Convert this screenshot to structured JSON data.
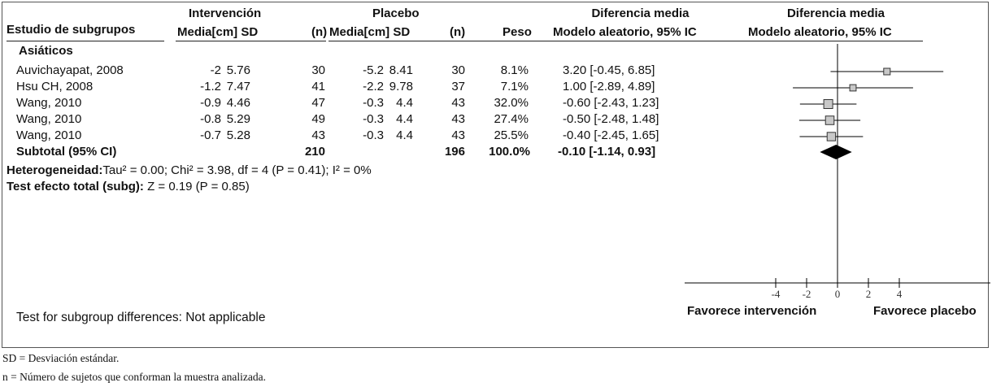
{
  "headers": {
    "study": "Estudio de subgrupos",
    "intervention": "Intervención",
    "placebo": "Placebo",
    "mean_sd_left": "Media[cm] SD",
    "n_left": "(n)",
    "mean_sd_right": "Media[cm] SD",
    "n_right": "(n)",
    "weight": "Peso",
    "diff_title": "Diferencia media",
    "diff_sub": "Modelo aleatorio, 95% IC",
    "plot_title": "Diferencia media",
    "plot_sub": "Modelo aleatorio, 95% IC"
  },
  "group_label": "Asiáticos",
  "studies": [
    {
      "name": "Auvichayapat, 2008",
      "m1": "-2",
      "sd1": "5.76",
      "n1": "30",
      "m2": "-5.2",
      "sd2": "8.41",
      "n2": "30",
      "weight": "8.1%",
      "ci": "3.20 [-0.45, 6.85]"
    },
    {
      "name": "Hsu CH, 2008",
      "m1": "-1.2",
      "sd1": "7.47",
      "n1": "41",
      "m2": "-2.2",
      "sd2": "9.78",
      "n2": "37",
      "weight": "7.1%",
      "ci": "1.00 [-2.89, 4.89]"
    },
    {
      "name": "Wang, 2010",
      "m1": "-0.9",
      "sd1": "4.46",
      "n1": "47",
      "m2": "-0.3",
      "sd2": "4.4",
      "n2": "43",
      "weight": "32.0%",
      "ci": "-0.60 [-2.43, 1.23]"
    },
    {
      "name": "Wang, 2010",
      "m1": "-0.8",
      "sd1": "5.29",
      "n1": "49",
      "m2": "-0.3",
      "sd2": "4.4",
      "n2": "43",
      "weight": "27.4%",
      "ci": "-0.50 [-2.48, 1.48]"
    },
    {
      "name": "Wang, 2010",
      "m1": "-0.7",
      "sd1": "5.28",
      "n1": "43",
      "m2": "-0.3",
      "sd2": "4.4",
      "n2": "43",
      "weight": "25.5%",
      "ci": "-0.40 [-2.45, 1.65]"
    }
  ],
  "subtotal": {
    "label": "Subtotal (95% CI)",
    "n1": "210",
    "n2": "196",
    "weight": "100.0%",
    "ci": "-0.10 [-1.14, 0.93]"
  },
  "heterogeneity": {
    "label": "Heterogeneidad:",
    "text": "Tau² = 0.00; Chi² = 3.98, df = 4 (P = 0.41); I² = 0%"
  },
  "overall": {
    "label": "Test efecto total (subg):",
    "text": "Z = 0.19 (P = 0.85)"
  },
  "subgroup_diff": "Test for subgroup differences: Not applicable",
  "favours_left": "Favorece intervención",
  "favours_right": "Favorece placebo",
  "footnotes": [
    "SD = Desviación estándar.",
    "n = Número de sujetos que conforman la muestra analizada."
  ],
  "chart_data": {
    "type": "forest",
    "x_ticks": [
      "-4",
      "-2",
      "0",
      "2",
      "4"
    ],
    "x_tick_values": [
      -4,
      -2,
      0,
      2,
      4
    ],
    "xlim": [
      -10,
      10
    ],
    "studies": [
      {
        "mean": 3.2,
        "lo": -0.45,
        "hi": 6.85,
        "weight": 8.1
      },
      {
        "mean": 1.0,
        "lo": -2.89,
        "hi": 4.89,
        "weight": 7.1
      },
      {
        "mean": -0.6,
        "lo": -2.43,
        "hi": 1.23,
        "weight": 32.0
      },
      {
        "mean": -0.5,
        "lo": -2.48,
        "hi": 1.48,
        "weight": 27.4
      },
      {
        "mean": -0.4,
        "lo": -2.45,
        "hi": 1.65,
        "weight": 25.5
      }
    ],
    "pooled": {
      "mean": -0.1,
      "lo": -1.14,
      "hi": 0.93
    },
    "colors": {
      "box": "#c8c8c8",
      "diamond": "#000000",
      "line": "#000000"
    }
  }
}
